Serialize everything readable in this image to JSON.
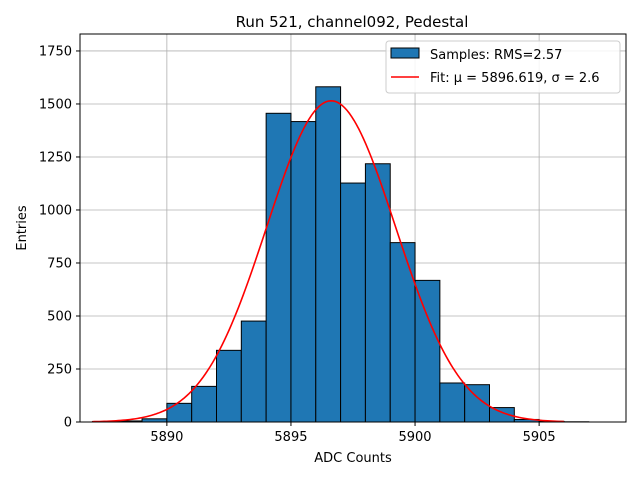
{
  "chart_data": {
    "type": "bar",
    "title": "Run 521, channel092, Pedestal",
    "xlabel": "ADC Counts",
    "ylabel": "Entries",
    "xlim": [
      5886.5,
      5908.5
    ],
    "ylim": [
      0,
      1830
    ],
    "xticks": [
      5890,
      5895,
      5900,
      5905
    ],
    "yticks": [
      0,
      250,
      500,
      750,
      1000,
      1250,
      1500,
      1750
    ],
    "grid": true,
    "legend_position": "top-right",
    "histogram": {
      "name": "Samples: RMS=2.57",
      "bin_edges": [
        5887,
        5888,
        5889,
        5890,
        5891,
        5892,
        5893,
        5894,
        5895,
        5896,
        5897,
        5898,
        5899,
        5900,
        5901,
        5902,
        5903,
        5904,
        5905,
        5906,
        5907,
        5908
      ],
      "values": [
        2,
        5,
        15,
        88,
        168,
        338,
        476,
        1456,
        1417,
        1581,
        1127,
        1218,
        846,
        668,
        184,
        176,
        68,
        12,
        3,
        1,
        0
      ],
      "color": "#1f77b4",
      "edgecolor": "#000000"
    },
    "fit": {
      "name": "Fit: μ = 5896.619, σ = 2.6",
      "mu": 5896.619,
      "sigma": 2.6,
      "amplitude": 1515,
      "x_range": [
        5887,
        5906
      ],
      "color": "#ff0000"
    }
  }
}
